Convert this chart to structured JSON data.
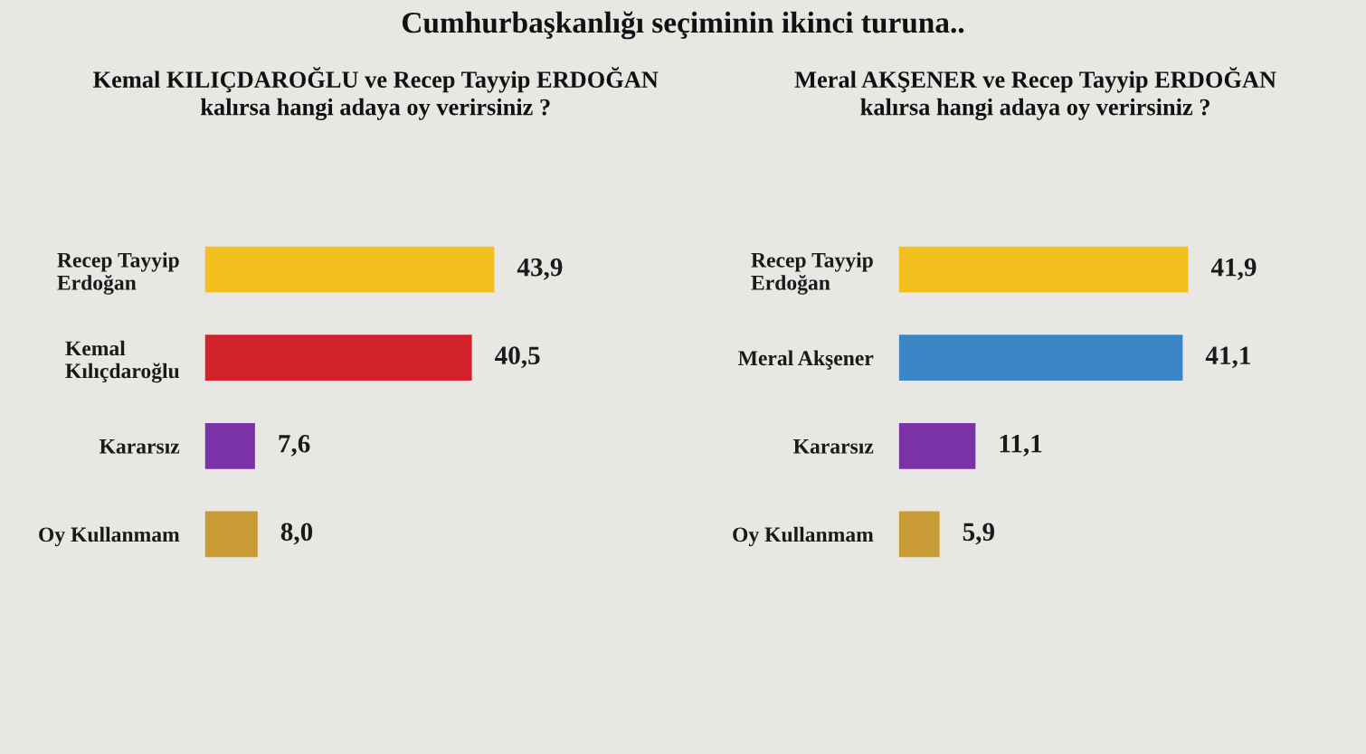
{
  "chart_data": [
    {
      "type": "bar",
      "orientation": "horizontal",
      "title": "Kemal KILIÇDAROĞLU ve Recep Tayyip ERDOĞAN\nkalırsa hangi adaya oy verirsiniz ?",
      "annotations": [
        "Cumhurbaşkanlığı seçiminin ikinci turuna.."
      ],
      "categories": [
        "Recep Tayyip\nErdoğan",
        "Kemal\nKılıçdaroğlu",
        "Kararsız",
        "Oy Kullanmam"
      ],
      "values": [
        43.9,
        40.5,
        7.6,
        8.0
      ],
      "value_labels": [
        "43,9",
        "40,5",
        "7,6",
        "8,0"
      ],
      "colors": [
        "#f4c01e",
        "#d2232a",
        "#7a32a6",
        "#c89b34"
      ],
      "tick_labels": "y"
    },
    {
      "type": "bar",
      "orientation": "horizontal",
      "title": "Meral AKŞENER ve Recep Tayyip ERDOĞAN\nkalırsa hangi adaya oy verirsiniz ?",
      "categories": [
        "Recep Tayyip\nErdoğan",
        "Meral Akşener",
        "Kararsız",
        "Oy Kullanmam"
      ],
      "values": [
        41.9,
        41.1,
        11.1,
        5.9
      ],
      "value_labels": [
        "41,9",
        "41,1",
        "11,1",
        "5,9"
      ],
      "colors": [
        "#f4c01e",
        "#3a86c6",
        "#7a32a6",
        "#c89b34"
      ],
      "tick_labels": "y"
    }
  ]
}
